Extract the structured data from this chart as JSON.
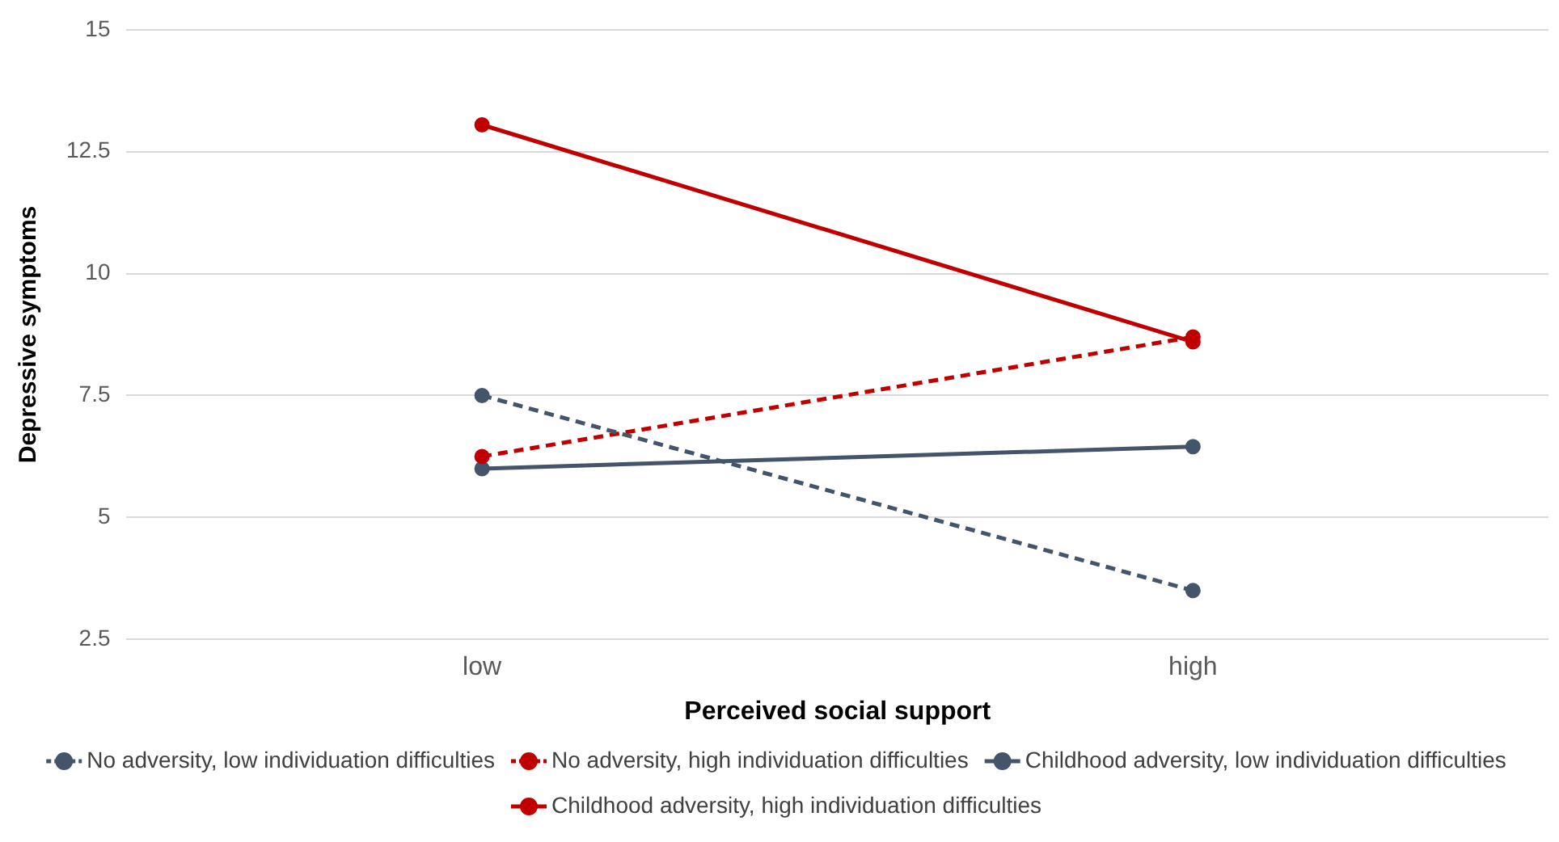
{
  "chart_data": {
    "type": "line",
    "xlabel": "Perceived social support",
    "ylabel": "Depressive symptoms",
    "categories": [
      "low",
      "high"
    ],
    "series": [
      {
        "name": "No adversity, low individuation difficulties",
        "color": "#44546a",
        "line_style": "dashed",
        "values": [
          7.5,
          3.5
        ]
      },
      {
        "name": "No adversity, high individuation difficulties",
        "color": "#c00000",
        "line_style": "dashed",
        "values": [
          6.25,
          8.7
        ]
      },
      {
        "name": "Childhood adversity, low individuation difficulties",
        "color": "#44546a",
        "line_style": "solid",
        "values": [
          6.0,
          6.45
        ]
      },
      {
        "name": "Childhood adversity, high individuation difficulties",
        "color": "#c00000",
        "line_style": "solid",
        "values": [
          13.05,
          8.6
        ]
      }
    ],
    "ylim": [
      2.5,
      15
    ],
    "yticks": [
      2.5,
      5,
      7.5,
      10,
      12.5,
      15
    ],
    "grid": "y",
    "legend": "bottom",
    "marker": "circle"
  }
}
